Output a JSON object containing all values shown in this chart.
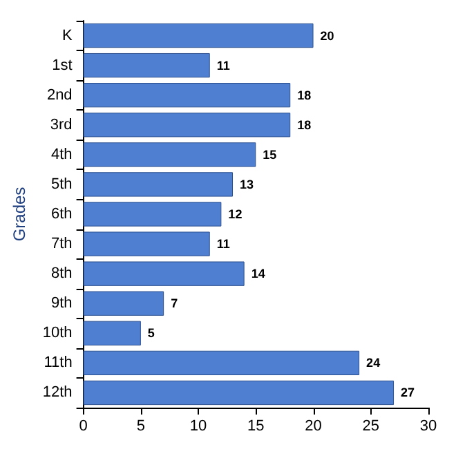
{
  "chart_data": {
    "type": "bar",
    "orientation": "horizontal",
    "ylabel": "Grades",
    "categories": [
      "K",
      "1st",
      "2nd",
      "3rd",
      "4th",
      "5th",
      "6th",
      "7th",
      "8th",
      "9th",
      "10th",
      "11th",
      "12th"
    ],
    "values": [
      20,
      11,
      18,
      18,
      15,
      13,
      12,
      11,
      14,
      7,
      5,
      24,
      27
    ],
    "color": "#4f7fd0",
    "xlim": [
      0,
      30
    ],
    "xticks": [
      0,
      5,
      10,
      15,
      20,
      25,
      30
    ],
    "data_labels": true,
    "grid": false
  }
}
